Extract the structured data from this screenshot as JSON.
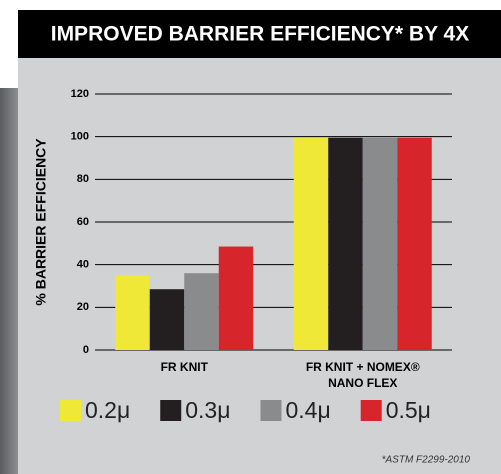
{
  "chart_data": {
    "type": "bar",
    "title": "IMPROVED BARRIER EFFICIENCY* BY 4X",
    "y_label": "% BARRIER EFFICIENCY",
    "categories": [
      "FR KNIT",
      "FR KNIT + NOMEX® NANO FLEX"
    ],
    "series": [
      {
        "name": "0.2μ",
        "color": "#f0e836",
        "values": [
          35,
          99.5
        ]
      },
      {
        "name": "0.3μ",
        "color": "#231f20",
        "values": [
          28.5,
          99.5
        ]
      },
      {
        "name": "0.4μ",
        "color": "#8a8b8d",
        "values": [
          36,
          99.5
        ]
      },
      {
        "name": "0.5μ",
        "color": "#d6262b",
        "values": [
          48.5,
          99.5
        ]
      }
    ],
    "ylim": [
      0,
      120
    ],
    "yticks": [
      0,
      20,
      40,
      60,
      80,
      100,
      120
    ],
    "grid": true,
    "footnote": "*ASTM F2299-2010"
  }
}
